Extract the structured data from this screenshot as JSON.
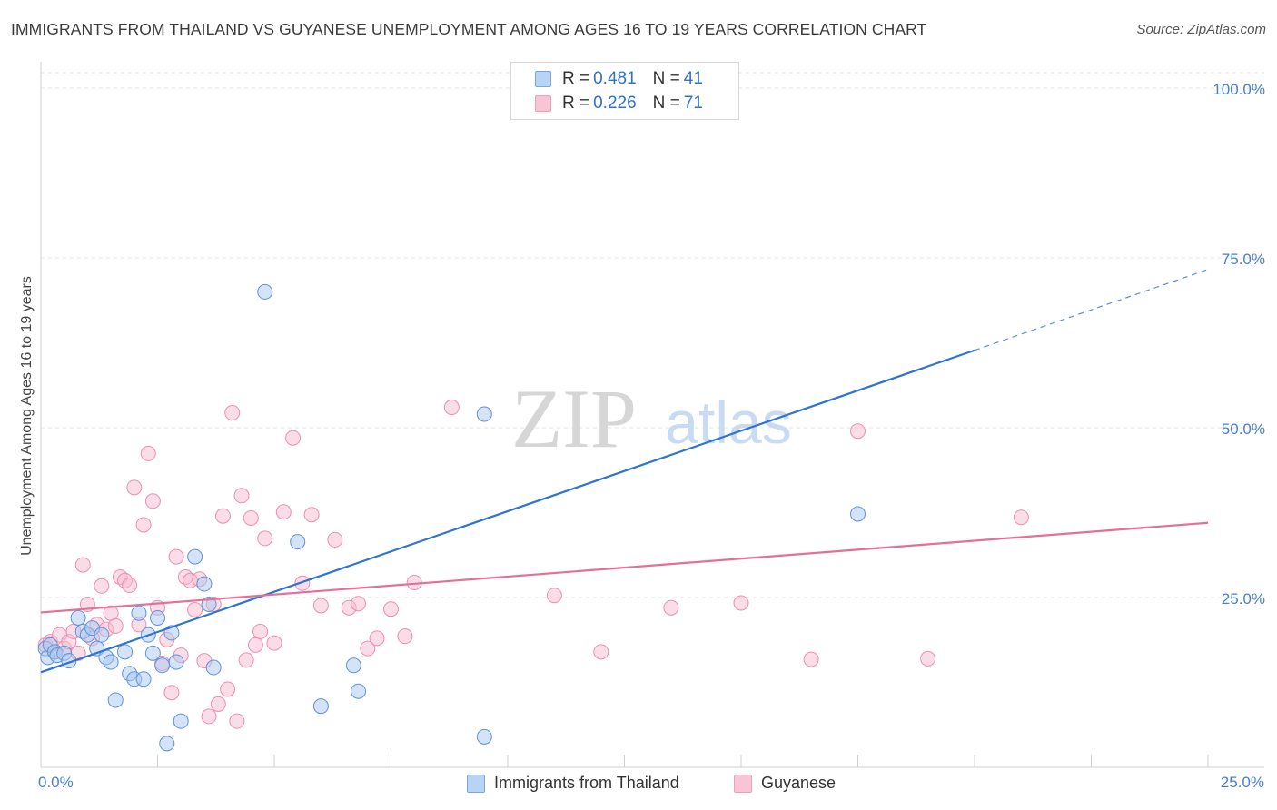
{
  "title": "IMMIGRANTS FROM THAILAND VS GUYANESE UNEMPLOYMENT AMONG AGES 16 TO 19 YEARS CORRELATION CHART",
  "source": "Source: ZipAtlas.com",
  "watermark": {
    "zip": "ZIP",
    "atlas": "atlas"
  },
  "legend": {
    "series1": {
      "r_label": "R = ",
      "r_value": "0.481",
      "n_label": "N = ",
      "n_value": "41"
    },
    "series2": {
      "r_label": "R = ",
      "r_value": "0.226",
      "n_label": "N = ",
      "n_value": "71"
    }
  },
  "bottom_legend": {
    "series1": "Immigrants from Thailand",
    "series2": "Guyanese"
  },
  "colors": {
    "blue_fill": "#a9c8f0",
    "blue_stroke": "#5d93dc",
    "blue_line": "#2f74d0",
    "pink_fill": "#f7bcd0",
    "pink_stroke": "#ec8fb0",
    "pink_line": "#e2709a",
    "grid": "#e3e3e3",
    "tick_text": "#4a7fd0"
  },
  "chart_data": {
    "type": "scatter",
    "title": "IMMIGRANTS FROM THAILAND VS GUYANESE UNEMPLOYMENT AMONG AGES 16 TO 19 YEARS CORRELATION CHART",
    "xlabel": "",
    "ylabel": "Unemployment Among Ages 16 to 19 years",
    "xlim": [
      0,
      25
    ],
    "ylim": [
      0,
      100
    ],
    "x_tick_labels": [
      "0.0%",
      "25.0%"
    ],
    "y_ticks": [
      25,
      50,
      75,
      100
    ],
    "y_tick_labels": [
      "25.0%",
      "50.0%",
      "75.0%",
      "100.0%"
    ],
    "series": [
      {
        "name": "Immigrants from Thailand",
        "R": 0.481,
        "N": 41,
        "trend": {
          "x0": 0,
          "y0": 14.0,
          "x1": 20,
          "y1": 61.4,
          "dashed_to_x": 25,
          "dashed_to_y": 73.3
        },
        "points": [
          [
            0.1,
            17.5
          ],
          [
            0.15,
            16.2
          ],
          [
            0.2,
            18.0
          ],
          [
            0.3,
            17.0
          ],
          [
            0.35,
            16.5
          ],
          [
            0.5,
            16.8
          ],
          [
            0.6,
            15.7
          ],
          [
            0.8,
            22.0
          ],
          [
            0.9,
            20.0
          ],
          [
            1.0,
            19.5
          ],
          [
            1.1,
            20.5
          ],
          [
            1.2,
            17.5
          ],
          [
            1.3,
            19.5
          ],
          [
            1.4,
            16.2
          ],
          [
            1.5,
            15.5
          ],
          [
            1.6,
            9.9
          ],
          [
            1.8,
            17.0
          ],
          [
            1.9,
            13.8
          ],
          [
            2.0,
            13.0
          ],
          [
            2.1,
            22.7
          ],
          [
            2.2,
            13.0
          ],
          [
            2.3,
            19.5
          ],
          [
            2.4,
            16.8
          ],
          [
            2.5,
            22.0
          ],
          [
            2.6,
            15.0
          ],
          [
            2.7,
            3.5
          ],
          [
            2.8,
            19.8
          ],
          [
            2.9,
            15.5
          ],
          [
            3.0,
            6.8
          ],
          [
            3.3,
            31.0
          ],
          [
            3.5,
            27.0
          ],
          [
            3.6,
            24.0
          ],
          [
            3.7,
            14.7
          ],
          [
            4.8,
            70.0
          ],
          [
            5.5,
            33.2
          ],
          [
            6.0,
            9.0
          ],
          [
            6.7,
            15.0
          ],
          [
            6.8,
            11.2
          ],
          [
            9.5,
            4.5
          ],
          [
            9.5,
            52.0
          ],
          [
            17.5,
            37.3
          ]
        ]
      },
      {
        "name": "Guyanese",
        "R": 0.226,
        "N": 71,
        "trend": {
          "x0": 0,
          "y0": 22.8,
          "x1": 25,
          "y1": 36.0
        },
        "points": [
          [
            0.1,
            18.0
          ],
          [
            0.2,
            18.5
          ],
          [
            0.3,
            17.0
          ],
          [
            0.4,
            19.5
          ],
          [
            0.5,
            17.5
          ],
          [
            0.6,
            18.5
          ],
          [
            0.7,
            20.0
          ],
          [
            0.8,
            16.8
          ],
          [
            0.9,
            29.8
          ],
          [
            1.0,
            24.0
          ],
          [
            1.1,
            19.0
          ],
          [
            1.2,
            21.0
          ],
          [
            1.3,
            26.7
          ],
          [
            1.4,
            20.3
          ],
          [
            1.5,
            22.7
          ],
          [
            1.6,
            20.8
          ],
          [
            1.7,
            28.0
          ],
          [
            1.8,
            27.5
          ],
          [
            1.9,
            26.8
          ],
          [
            2.0,
            41.2
          ],
          [
            2.1,
            21.0
          ],
          [
            2.2,
            35.7
          ],
          [
            2.3,
            46.2
          ],
          [
            2.4,
            39.2
          ],
          [
            2.5,
            23.5
          ],
          [
            2.6,
            15.3
          ],
          [
            2.7,
            18.8
          ],
          [
            2.8,
            11.0
          ],
          [
            2.9,
            31.0
          ],
          [
            3.0,
            16.5
          ],
          [
            3.1,
            28.0
          ],
          [
            3.2,
            27.5
          ],
          [
            3.3,
            23.2
          ],
          [
            3.4,
            27.7
          ],
          [
            3.5,
            15.7
          ],
          [
            3.6,
            7.5
          ],
          [
            3.7,
            24.0
          ],
          [
            3.8,
            9.3
          ],
          [
            3.9,
            37.0
          ],
          [
            4.0,
            11.5
          ],
          [
            4.1,
            52.2
          ],
          [
            4.2,
            6.8
          ],
          [
            4.3,
            40.0
          ],
          [
            4.4,
            15.8
          ],
          [
            4.5,
            36.7
          ],
          [
            4.6,
            18.0
          ],
          [
            4.7,
            20.0
          ],
          [
            4.8,
            33.7
          ],
          [
            5.0,
            18.3
          ],
          [
            5.2,
            37.6
          ],
          [
            5.4,
            48.5
          ],
          [
            5.6,
            27.1
          ],
          [
            5.8,
            37.2
          ],
          [
            6.0,
            23.8
          ],
          [
            6.3,
            33.5
          ],
          [
            6.6,
            23.5
          ],
          [
            6.8,
            24.1
          ],
          [
            7.0,
            17.5
          ],
          [
            7.2,
            19.0
          ],
          [
            7.5,
            23.3
          ],
          [
            7.8,
            19.3
          ],
          [
            8.0,
            27.2
          ],
          [
            8.8,
            53.0
          ],
          [
            11.0,
            25.3
          ],
          [
            12.0,
            17.0
          ],
          [
            13.5,
            23.5
          ],
          [
            15.0,
            24.2
          ],
          [
            16.5,
            15.9
          ],
          [
            17.5,
            49.5
          ],
          [
            19.0,
            16.0
          ],
          [
            21.0,
            36.8
          ]
        ]
      }
    ]
  }
}
